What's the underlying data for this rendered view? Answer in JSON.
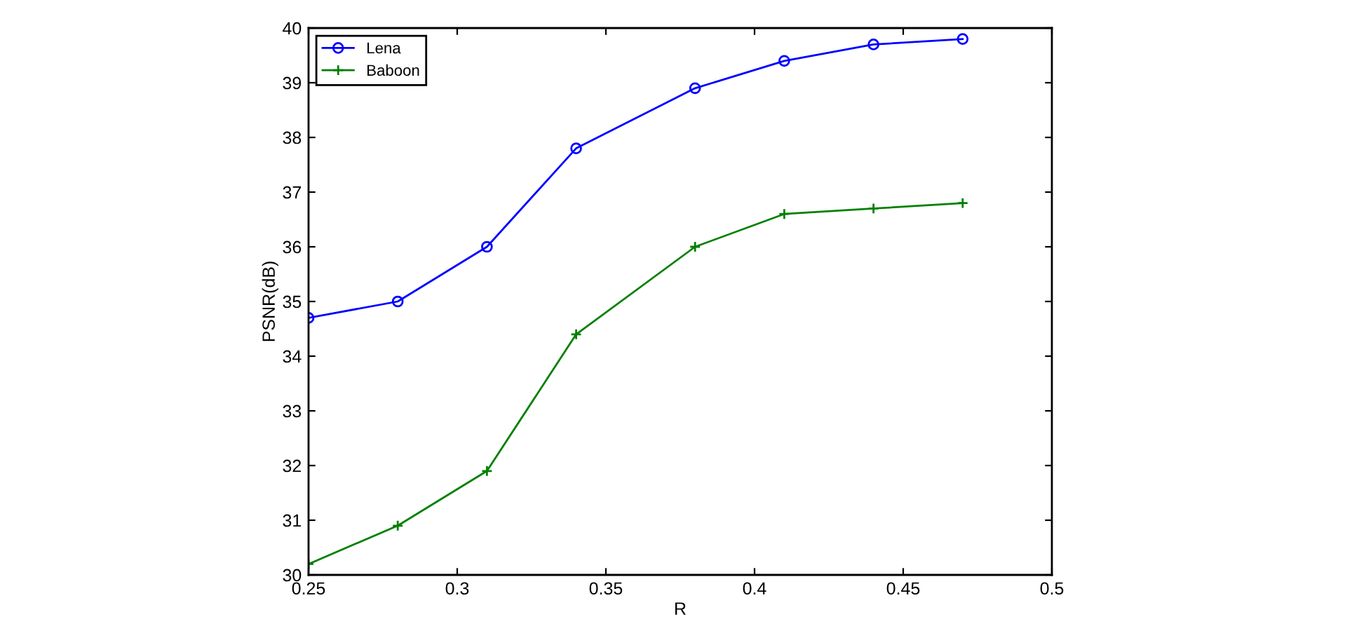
{
  "chart_data": {
    "type": "line",
    "xlabel": "R",
    "ylabel": "PSNR(dB)",
    "x": [
      0.25,
      0.28,
      0.31,
      0.34,
      0.38,
      0.41,
      0.44,
      0.47
    ],
    "series": [
      {
        "name": "Lena",
        "color": "#0000ff",
        "marker": "circle",
        "values": [
          34.7,
          35.0,
          36.0,
          37.8,
          38.9,
          39.4,
          39.7,
          39.8
        ]
      },
      {
        "name": "Baboon",
        "color": "#008000",
        "marker": "cross",
        "values": [
          30.2,
          30.9,
          31.9,
          34.4,
          36.0,
          36.6,
          36.7,
          36.8
        ]
      }
    ],
    "xlim": [
      0.25,
      0.5
    ],
    "xticks": [
      0.25,
      0.3,
      0.35,
      0.4,
      0.45,
      0.5
    ],
    "ylim": [
      30,
      40
    ],
    "yticks": [
      30,
      31,
      32,
      33,
      34,
      35,
      36,
      37,
      38,
      39,
      40
    ],
    "grid": false,
    "legend": "top left",
    "line_style": "solid"
  }
}
